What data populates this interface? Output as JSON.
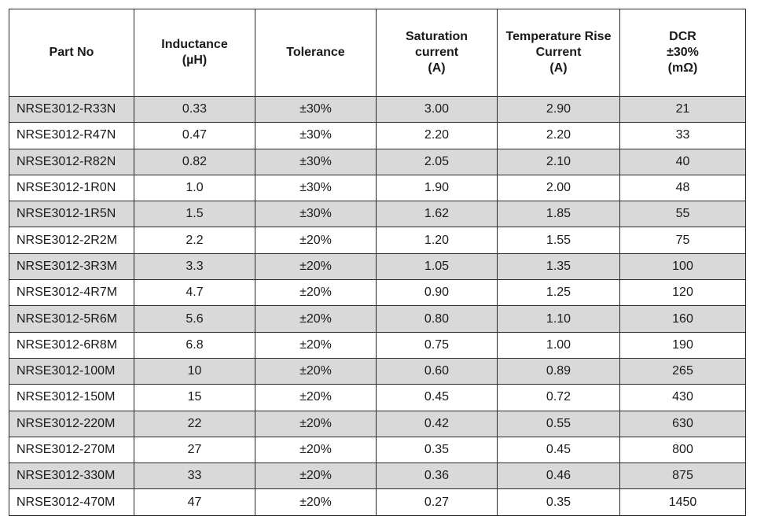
{
  "table": {
    "headers": [
      [
        "Part No"
      ],
      [
        "Inductance",
        "(µH)"
      ],
      [
        "Tolerance"
      ],
      [
        "Saturation",
        "current",
        "(A)"
      ],
      [
        "Temperature Rise",
        "Current",
        "(A)"
      ],
      [
        "DCR",
        "±30%",
        "(mΩ)"
      ]
    ],
    "rows": [
      [
        "NRSE3012-R33N",
        "0.33",
        "±30%",
        "3.00",
        "2.90",
        "21"
      ],
      [
        "NRSE3012-R47N",
        "0.47",
        "±30%",
        "2.20",
        "2.20",
        "33"
      ],
      [
        "NRSE3012-R82N",
        "0.82",
        "±30%",
        "2.05",
        "2.10",
        "40"
      ],
      [
        "NRSE3012-1R0N",
        "1.0",
        "±30%",
        "1.90",
        "2.00",
        "48"
      ],
      [
        "NRSE3012-1R5N",
        "1.5",
        "±30%",
        "1.62",
        "1.85",
        "55"
      ],
      [
        "NRSE3012-2R2M",
        "2.2",
        "±20%",
        "1.20",
        "1.55",
        "75"
      ],
      [
        "NRSE3012-3R3M",
        "3.3",
        "±20%",
        "1.05",
        "1.35",
        "100"
      ],
      [
        "NRSE3012-4R7M",
        "4.7",
        "±20%",
        "0.90",
        "1.25",
        "120"
      ],
      [
        "NRSE3012-5R6M",
        "5.6",
        "±20%",
        "0.80",
        "1.10",
        "160"
      ],
      [
        "NRSE3012-6R8M",
        "6.8",
        "±20%",
        "0.75",
        "1.00",
        "190"
      ],
      [
        "NRSE3012-100M",
        "10",
        "±20%",
        "0.60",
        "0.89",
        "265"
      ],
      [
        "NRSE3012-150M",
        "15",
        "±20%",
        "0.45",
        "0.72",
        "430"
      ],
      [
        "NRSE3012-220M",
        "22",
        "±20%",
        "0.42",
        "0.55",
        "630"
      ],
      [
        "NRSE3012-270M",
        "27",
        "±20%",
        "0.35",
        "0.45",
        "800"
      ],
      [
        "NRSE3012-330M",
        "33",
        "±20%",
        "0.36",
        "0.46",
        "875"
      ],
      [
        "NRSE3012-470M",
        "47",
        "±20%",
        "0.27",
        "0.35",
        "1450"
      ]
    ]
  },
  "colors": {
    "shaded_row": "#d9d9d9",
    "border": "#2b2b2b",
    "text": "#1a1a1a"
  }
}
